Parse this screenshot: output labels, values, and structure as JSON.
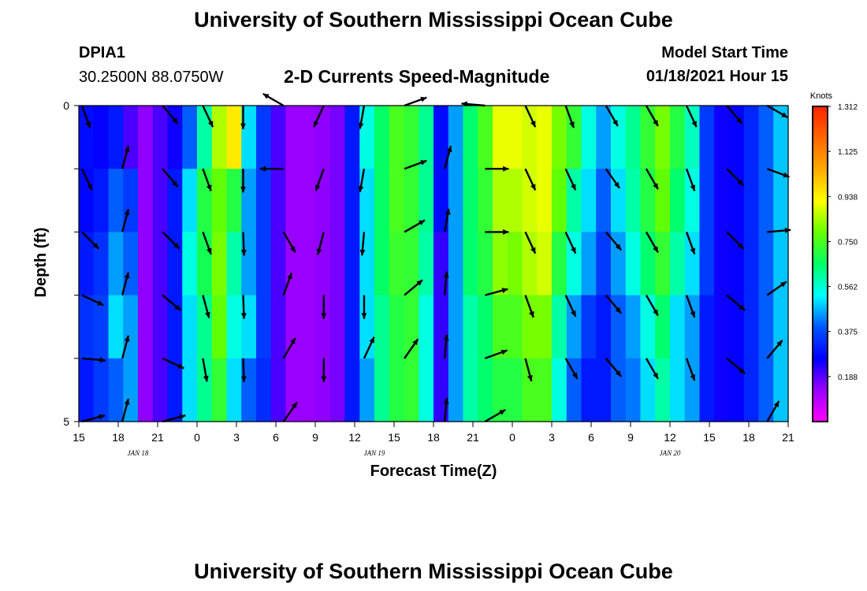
{
  "header": {
    "title": "University of Southern Mississippi Ocean Cube",
    "station_id": "DPIA1",
    "location": "30.2500N 88.0750W",
    "chart_title": "2-D Currents Speed-Magnitude",
    "model_start_label": "Model Start Time",
    "model_start_value": "01/18/2021 Hour 15"
  },
  "footer": {
    "title": "University of Southern Mississippi Ocean Cube"
  },
  "colors": {
    "scale": [
      "#ff00ff",
      "#9900ff",
      "#0000ff",
      "#0055ff",
      "#00ffff",
      "#00ff66",
      "#66ff00",
      "#ffff00",
      "#ffaa00",
      "#ff6600",
      "#ff2200"
    ]
  },
  "chart_data": {
    "type": "heatmap",
    "title": "2-D Currents Speed-Magnitude",
    "xlabel": "Forecast Time(Z)",
    "ylabel": "Depth (ft)",
    "ylim": [
      0,
      5
    ],
    "y_tick_labels": [
      "0",
      "5"
    ],
    "x_tick_labels": [
      "15",
      "18",
      "21",
      "0",
      "3",
      "6",
      "9",
      "12",
      "15",
      "18",
      "21",
      "0",
      "3",
      "6",
      "9",
      "12",
      "15",
      "18",
      "21"
    ],
    "date_labels": [
      {
        "label": "JAN 18",
        "hour_index": 1
      },
      {
        "label": "JAN 19",
        "hour_index": 7
      },
      {
        "label": "JAN 20",
        "hour_index": 14.5
      }
    ],
    "colorbar": {
      "unit": "Knots",
      "min": 0,
      "max": 1.312,
      "ticks": [
        "1.312",
        "1.125",
        "0.938",
        "0.750",
        "0.562",
        "0.375",
        "0.188"
      ]
    },
    "depth_layers": 5,
    "column_speeds": [
      [
        0.28,
        0.27,
        0.3,
        0.34,
        0.3
      ],
      [
        0.26,
        0.3,
        0.34,
        0.36,
        0.35
      ],
      [
        0.3,
        0.4,
        0.45,
        0.5,
        0.4
      ],
      [
        0.2,
        0.35,
        0.4,
        0.45,
        0.45
      ],
      [
        0.14,
        0.14,
        0.14,
        0.14,
        0.14
      ],
      [
        0.2,
        0.2,
        0.2,
        0.2,
        0.2
      ],
      [
        0.25,
        0.3,
        0.3,
        0.3,
        0.3
      ],
      [
        0.4,
        0.5,
        0.55,
        0.5,
        0.5
      ],
      [
        0.6,
        0.7,
        0.68,
        0.62,
        0.62
      ],
      [
        0.85,
        0.78,
        0.8,
        0.78,
        0.72
      ],
      [
        0.95,
        0.7,
        0.6,
        0.55,
        0.5
      ],
      [
        0.5,
        0.45,
        0.45,
        0.5,
        0.4
      ],
      [
        0.35,
        0.35,
        0.35,
        0.35,
        0.33
      ],
      [
        0.2,
        0.2,
        0.2,
        0.2,
        0.2
      ],
      [
        0.13,
        0.13,
        0.13,
        0.13,
        0.13
      ],
      [
        0.13,
        0.13,
        0.13,
        0.13,
        0.13
      ],
      [
        0.14,
        0.14,
        0.14,
        0.14,
        0.14
      ],
      [
        0.16,
        0.16,
        0.16,
        0.16,
        0.16
      ],
      [
        0.3,
        0.3,
        0.3,
        0.3,
        0.3
      ],
      [
        0.55,
        0.5,
        0.5,
        0.5,
        0.45
      ],
      [
        0.66,
        0.66,
        0.66,
        0.62,
        0.62
      ],
      [
        0.75,
        0.75,
        0.73,
        0.7,
        0.7
      ],
      [
        0.72,
        0.72,
        0.72,
        0.72,
        0.72
      ],
      [
        0.62,
        0.62,
        0.6,
        0.55,
        0.55
      ],
      [
        0.28,
        0.28,
        0.22,
        0.22,
        0.22
      ],
      [
        0.45,
        0.45,
        0.45,
        0.45,
        0.45
      ],
      [
        0.65,
        0.65,
        0.65,
        0.6,
        0.6
      ],
      [
        0.75,
        0.72,
        0.7,
        0.65,
        0.65
      ],
      [
        0.9,
        0.85,
        0.82,
        0.75,
        0.7
      ],
      [
        0.9,
        0.85,
        0.8,
        0.75,
        0.7
      ],
      [
        0.88,
        0.88,
        0.85,
        0.8,
        0.75
      ],
      [
        0.9,
        0.9,
        0.88,
        0.8,
        0.75
      ],
      [
        0.8,
        0.78,
        0.7,
        0.6,
        0.55
      ],
      [
        0.72,
        0.6,
        0.55,
        0.45,
        0.4
      ],
      [
        0.55,
        0.5,
        0.45,
        0.35,
        0.3
      ],
      [
        0.45,
        0.4,
        0.35,
        0.3,
        0.3
      ],
      [
        0.55,
        0.5,
        0.45,
        0.4,
        0.4
      ],
      [
        0.62,
        0.6,
        0.55,
        0.45,
        0.42
      ],
      [
        0.72,
        0.7,
        0.65,
        0.55,
        0.5
      ],
      [
        0.8,
        0.78,
        0.72,
        0.65,
        0.6
      ],
      [
        0.7,
        0.65,
        0.6,
        0.5,
        0.5
      ],
      [
        0.58,
        0.55,
        0.5,
        0.45,
        0.45
      ],
      [
        0.35,
        0.35,
        0.35,
        0.3,
        0.3
      ],
      [
        0.25,
        0.25,
        0.25,
        0.25,
        0.25
      ],
      [
        0.26,
        0.26,
        0.26,
        0.26,
        0.26
      ],
      [
        0.32,
        0.32,
        0.32,
        0.32,
        0.32
      ],
      [
        0.4,
        0.4,
        0.4,
        0.4,
        0.4
      ],
      [
        0.48,
        0.48,
        0.48,
        0.48,
        0.48
      ]
    ],
    "arrows": [
      {
        "hour": 0,
        "layer": 0,
        "dir_deg": 160
      },
      {
        "hour": 0,
        "layer": 1,
        "dir_deg": 155
      },
      {
        "hour": 0,
        "layer": 2,
        "dir_deg": 135
      },
      {
        "hour": 0,
        "layer": 3,
        "dir_deg": 115
      },
      {
        "hour": 0,
        "layer": 4,
        "dir_deg": 95
      },
      {
        "hour": 0,
        "layer": 5,
        "dir_deg": 75
      },
      {
        "hour": 1,
        "layer": 1,
        "dir_deg": 15
      },
      {
        "hour": 1,
        "layer": 2,
        "dir_deg": 15
      },
      {
        "hour": 1,
        "layer": 3,
        "dir_deg": 15
      },
      {
        "hour": 1,
        "layer": 4,
        "dir_deg": 15
      },
      {
        "hour": 1,
        "layer": 5,
        "dir_deg": 15
      },
      {
        "hour": 2,
        "layer": 0,
        "dir_deg": 140
      },
      {
        "hour": 2,
        "layer": 1,
        "dir_deg": 140
      },
      {
        "hour": 2,
        "layer": 2,
        "dir_deg": 135
      },
      {
        "hour": 2,
        "layer": 3,
        "dir_deg": 130
      },
      {
        "hour": 2,
        "layer": 4,
        "dir_deg": 115
      },
      {
        "hour": 2,
        "layer": 5,
        "dir_deg": 75
      },
      {
        "hour": 3,
        "layer": 0,
        "dir_deg": 155
      },
      {
        "hour": 3,
        "layer": 1,
        "dir_deg": 160
      },
      {
        "hour": 3,
        "layer": 2,
        "dir_deg": 160
      },
      {
        "hour": 3,
        "layer": 3,
        "dir_deg": 165
      },
      {
        "hour": 3,
        "layer": 4,
        "dir_deg": 170
      },
      {
        "hour": 4,
        "layer": 0,
        "dir_deg": 180
      },
      {
        "hour": 4,
        "layer": 1,
        "dir_deg": 180
      },
      {
        "hour": 4,
        "layer": 2,
        "dir_deg": 178
      },
      {
        "hour": 4,
        "layer": 3,
        "dir_deg": 178
      },
      {
        "hour": 4,
        "layer": 4,
        "dir_deg": 178
      },
      {
        "hour": 5,
        "layer": 0,
        "dir_deg": 300
      },
      {
        "hour": 5,
        "layer": 1,
        "dir_deg": 270
      },
      {
        "hour": 5,
        "layer": 2,
        "dir_deg": 150
      },
      {
        "hour": 5,
        "layer": 3,
        "dir_deg": 20
      },
      {
        "hour": 5,
        "layer": 4,
        "dir_deg": 30
      },
      {
        "hour": 5,
        "layer": 5,
        "dir_deg": 35
      },
      {
        "hour": 6,
        "layer": 0,
        "dir_deg": 205
      },
      {
        "hour": 6,
        "layer": 1,
        "dir_deg": 200
      },
      {
        "hour": 6,
        "layer": 2,
        "dir_deg": 195
      },
      {
        "hour": 6,
        "layer": 3,
        "dir_deg": 180
      },
      {
        "hour": 6,
        "layer": 4,
        "dir_deg": 180
      },
      {
        "hour": 7,
        "layer": 0,
        "dir_deg": 190
      },
      {
        "hour": 7,
        "layer": 1,
        "dir_deg": 190
      },
      {
        "hour": 7,
        "layer": 2,
        "dir_deg": 185
      },
      {
        "hour": 7,
        "layer": 3,
        "dir_deg": 180
      },
      {
        "hour": 7,
        "layer": 4,
        "dir_deg": 25
      },
      {
        "hour": 8,
        "layer": 0,
        "dir_deg": 70
      },
      {
        "hour": 8,
        "layer": 1,
        "dir_deg": 70
      },
      {
        "hour": 8,
        "layer": 2,
        "dir_deg": 60
      },
      {
        "hour": 8,
        "layer": 3,
        "dir_deg": 50
      },
      {
        "hour": 8,
        "layer": 4,
        "dir_deg": 35
      },
      {
        "hour": 9,
        "layer": 1,
        "dir_deg": 15
      },
      {
        "hour": 9,
        "layer": 2,
        "dir_deg": 10
      },
      {
        "hour": 9,
        "layer": 3,
        "dir_deg": 5
      },
      {
        "hour": 9,
        "layer": 4,
        "dir_deg": 5
      },
      {
        "hour": 9,
        "layer": 5,
        "dir_deg": 5
      },
      {
        "hour": 10,
        "layer": 0,
        "dir_deg": 275
      },
      {
        "hour": 10,
        "layer": 1,
        "dir_deg": 90
      },
      {
        "hour": 10,
        "layer": 2,
        "dir_deg": 90
      },
      {
        "hour": 10,
        "layer": 3,
        "dir_deg": 75
      },
      {
        "hour": 10,
        "layer": 4,
        "dir_deg": 70
      },
      {
        "hour": 10,
        "layer": 5,
        "dir_deg": 60
      },
      {
        "hour": 11,
        "layer": 0,
        "dir_deg": 155
      },
      {
        "hour": 11,
        "layer": 1,
        "dir_deg": 155
      },
      {
        "hour": 11,
        "layer": 2,
        "dir_deg": 155
      },
      {
        "hour": 11,
        "layer": 3,
        "dir_deg": 160
      },
      {
        "hour": 11,
        "layer": 4,
        "dir_deg": 165
      },
      {
        "hour": 12,
        "layer": 0,
        "dir_deg": 160
      },
      {
        "hour": 12,
        "layer": 1,
        "dir_deg": 155
      },
      {
        "hour": 12,
        "layer": 2,
        "dir_deg": 155
      },
      {
        "hour": 12,
        "layer": 3,
        "dir_deg": 155
      },
      {
        "hour": 12,
        "layer": 4,
        "dir_deg": 150
      },
      {
        "hour": 13,
        "layer": 0,
        "dir_deg": 150
      },
      {
        "hour": 13,
        "layer": 1,
        "dir_deg": 145
      },
      {
        "hour": 13,
        "layer": 2,
        "dir_deg": 140
      },
      {
        "hour": 13,
        "layer": 3,
        "dir_deg": 140
      },
      {
        "hour": 13,
        "layer": 4,
        "dir_deg": 140
      },
      {
        "hour": 14,
        "layer": 0,
        "dir_deg": 150
      },
      {
        "hour": 14,
        "layer": 1,
        "dir_deg": 150
      },
      {
        "hour": 14,
        "layer": 2,
        "dir_deg": 150
      },
      {
        "hour": 14,
        "layer": 3,
        "dir_deg": 150
      },
      {
        "hour": 14,
        "layer": 4,
        "dir_deg": 150
      },
      {
        "hour": 15,
        "layer": 0,
        "dir_deg": 155
      },
      {
        "hour": 15,
        "layer": 1,
        "dir_deg": 160
      },
      {
        "hour": 15,
        "layer": 2,
        "dir_deg": 160
      },
      {
        "hour": 15,
        "layer": 3,
        "dir_deg": 160
      },
      {
        "hour": 15,
        "layer": 4,
        "dir_deg": 160
      },
      {
        "hour": 16,
        "layer": 0,
        "dir_deg": 140
      },
      {
        "hour": 16,
        "layer": 1,
        "dir_deg": 135
      },
      {
        "hour": 16,
        "layer": 2,
        "dir_deg": 135
      },
      {
        "hour": 16,
        "layer": 3,
        "dir_deg": 130
      },
      {
        "hour": 16,
        "layer": 4,
        "dir_deg": 130
      },
      {
        "hour": 17,
        "layer": 0,
        "dir_deg": 120
      },
      {
        "hour": 17,
        "layer": 1,
        "dir_deg": 110
      },
      {
        "hour": 17,
        "layer": 2,
        "dir_deg": 85
      },
      {
        "hour": 17,
        "layer": 3,
        "dir_deg": 55
      },
      {
        "hour": 17,
        "layer": 4,
        "dir_deg": 40
      },
      {
        "hour": 17,
        "layer": 5,
        "dir_deg": 30
      }
    ]
  }
}
